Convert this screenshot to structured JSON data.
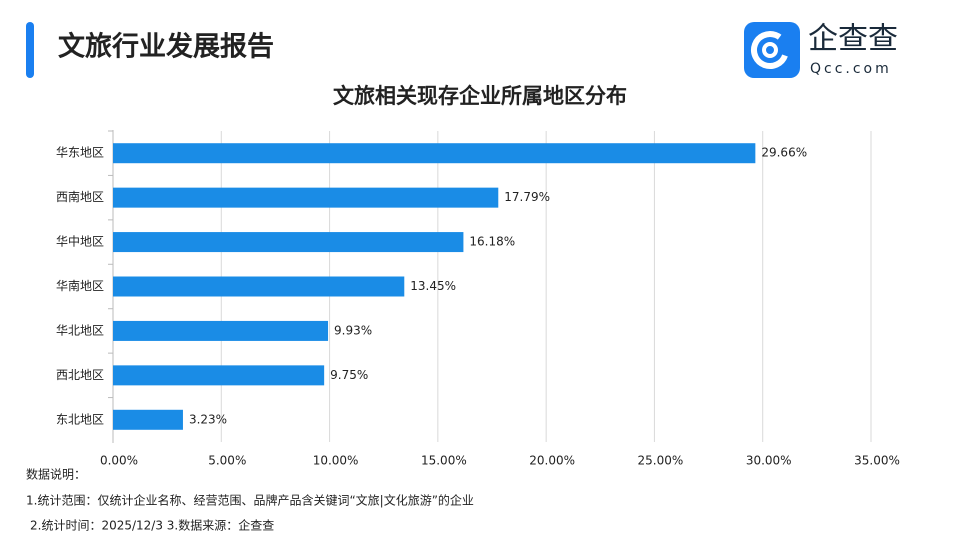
{
  "header": {
    "title": "文旅行业发展报告"
  },
  "logo": {
    "name": "企查查",
    "domain": "Qcc.com"
  },
  "chart_data": {
    "type": "bar",
    "orientation": "horizontal",
    "title": "文旅相关现存企业所属地区分布",
    "categories": [
      "华东地区",
      "西南地区",
      "华中地区",
      "华南地区",
      "华北地区",
      "西北地区",
      "东北地区"
    ],
    "values": [
      29.66,
      17.79,
      16.18,
      13.45,
      9.93,
      9.75,
      3.23
    ],
    "value_labels": [
      "29.66%",
      "17.79%",
      "16.18%",
      "13.45%",
      "9.93%",
      "9.75%",
      "3.23%"
    ],
    "color": "#1a8ce6",
    "xlim": [
      0,
      35
    ],
    "xticks": [
      {
        "value": 0,
        "label": "0.00%"
      },
      {
        "value": 5,
        "label": "5.00%"
      },
      {
        "value": 10,
        "label": "10.00%"
      },
      {
        "value": 15,
        "label": "15.00%"
      },
      {
        "value": 20,
        "label": "20.00%"
      },
      {
        "value": 25,
        "label": "25.00%"
      },
      {
        "value": 30,
        "label": "30.00%"
      },
      {
        "value": 35,
        "label": "35.00%"
      }
    ],
    "grid": true
  },
  "notes": [
    "数据说明：",
    "1.统计范围：仅统计企业名称、经营范围、品牌产品含关键词“文旅|文化旅游”的企业",
    "2.统计时间：2025/12/3 3.数据来源：企查查"
  ]
}
